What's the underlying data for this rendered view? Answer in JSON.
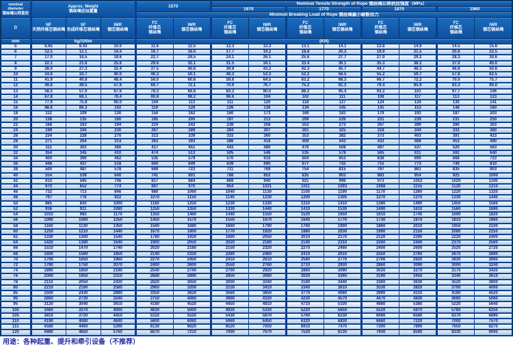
{
  "header": {
    "diameter_lines": [
      "nominal",
      "diameter",
      "钢丝绳公称直径"
    ],
    "diameter_symbol": "D",
    "diameter_unit": "mm",
    "weight_lines": [
      "Approx. Weight",
      "钢丝绳近似重量"
    ],
    "weight_unit": "kg/100m",
    "weight_columns": [
      {
        "code": "NF",
        "zh": "天然纤维芯钢丝绳"
      },
      {
        "code": "SF",
        "zh": "合成纤维芯钢丝绳"
      },
      {
        "code": "IWR",
        "zh": "钢芯钢丝绳"
      }
    ],
    "strength_title": "Nominal Tensile Strength of Rope 钢丝绳公称抗拉强度（MPa）",
    "strengths": [
      "1570",
      "1670",
      "1770",
      "1870",
      "1960"
    ],
    "breaking_title": "Minimun Breaking Load of Rope 钢丝绳最小破断拉力",
    "load_unit": "(KN)",
    "core_columns": [
      {
        "code": "FC",
        "lines": [
          "FC",
          "纤维芯",
          "钢丝绳"
        ]
      },
      {
        "code": "IWR",
        "lines": [
          "IWR",
          "钢芯钢丝绳"
        ]
      }
    ]
  },
  "footer": {
    "note": "用途：各种起重、提升和牵引设备（不推荐）"
  },
  "colors": {
    "frame": "#0b3f8f",
    "header_bg": "#115aab",
    "header_text": "#ffffff",
    "row_light": "#d9e8f8",
    "row_dark": "#b5d0eb",
    "data_text": "#1c2277",
    "note_text": "#2a2aa0"
  },
  "chart_data": {
    "type": "table",
    "title": "Wire rope specifications: approximate weight and minimum breaking load",
    "columns": [
      "D mm",
      "NF kg/100m",
      "SF kg/100m",
      "IWR kg/100m",
      "1570 FC KN",
      "1570 IWR KN",
      "1670 FC KN",
      "1670 IWR KN",
      "1770 FC KN",
      "1770 IWR KN",
      "1870 FC KN",
      "1870 IWR KN",
      "1960 FC KN",
      "1960 IWR KN"
    ],
    "rows": [
      [
        "5",
        "8.65",
        "8.43",
        "10.0",
        "11.6",
        "12.5",
        "12.3",
        "13.3",
        "13.1",
        "14.1",
        "13.8",
        "14.9",
        "14.5",
        "15.6"
      ],
      [
        "6",
        "12.5",
        "12.1",
        "14.4",
        "16.7",
        "18.0",
        "17.7",
        "19.2",
        "18.8",
        "20.3",
        "19.9",
        "21.5",
        "20.8",
        "22.5"
      ],
      [
        "7",
        "17.0",
        "16.5",
        "19.6",
        "22.7",
        "24.5",
        "24.1",
        "26.1",
        "25.6",
        "27.7",
        "27.0",
        "29.2",
        "28.3",
        "30.6"
      ],
      [
        "8",
        "22.1",
        "21.6",
        "25.6",
        "29.6",
        "32.1",
        "31.5",
        "34.1",
        "33.4",
        "36.1",
        "35.3",
        "38.2",
        "37.0",
        "40.0"
      ],
      [
        "9",
        "28.0",
        "27.3",
        "32.4",
        "37.5",
        "40.6",
        "39.9",
        "43.2",
        "42.3",
        "45.7",
        "44.7",
        "48.3",
        "46.8",
        "50.6"
      ],
      [
        "10",
        "34.6",
        "33.7",
        "40.0",
        "46.3",
        "50.1",
        "49.3",
        "53.3",
        "52.2",
        "56.5",
        "55.2",
        "59.7",
        "57.8",
        "62.5"
      ],
      [
        "11",
        "41.9",
        "40.8",
        "48.4",
        "56.0",
        "60.6",
        "59.6",
        "64.5",
        "63.2",
        "68.3",
        "66.7",
        "72.2",
        "70.0",
        "75.7"
      ],
      [
        "12",
        "49.8",
        "48.5",
        "57.6",
        "66.7",
        "72.1",
        "70.9",
        "76.7",
        "75.2",
        "81.3",
        "79.4",
        "85.9",
        "83.3",
        "90.0"
      ],
      [
        "13",
        "58.5",
        "57.0",
        "67.6",
        "78.3",
        "84.6",
        "83.3",
        "90.0",
        "88.2",
        "95.4",
        "93.2",
        "101",
        "97.7",
        "106"
      ],
      [
        "14",
        "67.8",
        "66.1",
        "78.4",
        "90.8",
        "98.2",
        "96.6",
        "104",
        "102",
        "111",
        "108",
        "117",
        "113",
        "123"
      ],
      [
        "15",
        "77.9",
        "75.8",
        "90.0",
        "104",
        "113",
        "111",
        "120",
        "118",
        "127",
        "124",
        "134",
        "130",
        "141"
      ],
      [
        "16",
        "88.6",
        "86.3",
        "102",
        "119",
        "128",
        "126",
        "136",
        "134",
        "145",
        "141",
        "153",
        "148",
        "160"
      ],
      [
        "18",
        "112",
        "109",
        "130",
        "150",
        "162",
        "160",
        "173",
        "169",
        "183",
        "179",
        "193",
        "187",
        "203"
      ],
      [
        "20",
        "138",
        "135",
        "160",
        "185",
        "200",
        "197",
        "213",
        "209",
        "226",
        "221",
        "239",
        "231",
        "250"
      ],
      [
        "22",
        "168",
        "163",
        "194",
        "224",
        "242",
        "238",
        "258",
        "253",
        "273",
        "267",
        "289",
        "280",
        "303"
      ],
      [
        "24",
        "199",
        "194",
        "230",
        "267",
        "289",
        "284",
        "307",
        "301",
        "325",
        "318",
        "344",
        "333",
        "360"
      ],
      [
        "26",
        "234",
        "228",
        "270",
        "313",
        "339",
        "333",
        "360",
        "353",
        "382",
        "373",
        "403",
        "391",
        "423"
      ],
      [
        "28",
        "271",
        "264",
        "314",
        "363",
        "393",
        "386",
        "418",
        "409",
        "443",
        "433",
        "468",
        "453",
        "490"
      ],
      [
        "30",
        "311",
        "303",
        "360",
        "417",
        "451",
        "443",
        "480",
        "470",
        "508",
        "497",
        "537",
        "520",
        "563"
      ],
      [
        "32",
        "354",
        "345",
        "410",
        "474",
        "513",
        "505",
        "546",
        "535",
        "578",
        "565",
        "611",
        "592",
        "640"
      ],
      [
        "34",
        "400",
        "390",
        "462",
        "535",
        "579",
        "570",
        "616",
        "604",
        "653",
        "638",
        "690",
        "668",
        "723"
      ],
      [
        "36",
        "448",
        "437",
        "518",
        "600",
        "649",
        "639",
        "690",
        "677",
        "732",
        "715",
        "773",
        "749",
        "810"
      ],
      [
        "38",
        "500",
        "487",
        "578",
        "669",
        "723",
        "711",
        "769",
        "754",
        "815",
        "797",
        "861",
        "835",
        "903"
      ],
      [
        "40",
        "554",
        "539",
        "640",
        "741",
        "801",
        "788",
        "852",
        "835",
        "903",
        "883",
        "954",
        "925",
        "1000"
      ],
      [
        "42",
        "610",
        "595",
        "706",
        "817",
        "884",
        "869",
        "940",
        "921",
        "996",
        "973",
        "1052",
        "1020",
        "1100"
      ],
      [
        "44",
        "670",
        "652",
        "774",
        "897",
        "970",
        "954",
        "1031",
        "1011",
        "1093",
        "1068",
        "1155",
        "1120",
        "1210"
      ],
      [
        "46",
        "732",
        "713",
        "846",
        "980",
        "1060",
        "1040",
        "1130",
        "1100",
        "1190",
        "1170",
        "1260",
        "1220",
        "1320"
      ],
      [
        "48",
        "797",
        "776",
        "922",
        "1070",
        "1150",
        "1140",
        "1230",
        "1200",
        "1300",
        "1270",
        "1370",
        "1330",
        "1440"
      ],
      [
        "50",
        "865",
        "843",
        "1000",
        "1160",
        "1250",
        "1230",
        "1330",
        "1310",
        "1410",
        "1380",
        "1490",
        "1450",
        "1560"
      ],
      [
        "52",
        "936",
        "911",
        "1080",
        "1250",
        "1350",
        "1330",
        "1440",
        "1410",
        "1530",
        "1490",
        "1610",
        "1560",
        "1690"
      ],
      [
        "54",
        "1010",
        "983",
        "1170",
        "1350",
        "1460",
        "1440",
        "1550",
        "1520",
        "1650",
        "1610",
        "1740",
        "1690",
        "1820"
      ],
      [
        "56",
        "1090",
        "1060",
        "1250",
        "1450",
        "1570",
        "1550",
        "1670",
        "1640",
        "1770",
        "1730",
        "1870",
        "1810",
        "1960"
      ],
      [
        "58",
        "1160",
        "1130",
        "1350",
        "1560",
        "1680",
        "1660",
        "1790",
        "1760",
        "1900",
        "1860",
        "2010",
        "1950",
        "2100"
      ],
      [
        "60",
        "1250",
        "1210",
        "1440",
        "1670",
        "1800",
        "1770",
        "1920",
        "1880",
        "2030",
        "1990",
        "2150",
        "2080",
        "2250"
      ],
      [
        "62",
        "1330",
        "1300",
        "1540",
        "1780",
        "1920",
        "1890",
        "2050",
        "2010",
        "2170",
        "2120",
        "2290",
        "2220",
        "2400"
      ],
      [
        "64",
        "1420",
        "1380",
        "1640",
        "1900",
        "2050",
        "2020",
        "2180",
        "2140",
        "2310",
        "2260",
        "2440",
        "2370",
        "2560"
      ],
      [
        "66",
        "1510",
        "1470",
        "1740",
        "2020",
        "2180",
        "2150",
        "2320",
        "2270",
        "2460",
        "2400",
        "2600",
        "2520",
        "2720"
      ],
      [
        "68",
        "1600",
        "1560",
        "1850",
        "2140",
        "2320",
        "2280",
        "2460",
        "2410",
        "2610",
        "2550",
        "2760",
        "2670",
        "2890"
      ],
      [
        "70",
        "1700",
        "1650",
        "1960",
        "2270",
        "2450",
        "2410",
        "2610",
        "2560",
        "2770",
        "2700",
        "2920",
        "2830",
        "3060"
      ],
      [
        "72",
        "1790",
        "1750",
        "2070",
        "2400",
        "2600",
        "2550",
        "2760",
        "2710",
        "2930",
        "2860",
        "3090",
        "3000",
        "3240"
      ],
      [
        "74",
        "1890",
        "1850",
        "2190",
        "2540",
        "2740",
        "2700",
        "2920",
        "2860",
        "3090",
        "3020",
        "3270",
        "3170",
        "3420"
      ],
      [
        "76",
        "2000",
        "1950",
        "2310",
        "2680",
        "2890",
        "2850",
        "3080",
        "3020",
        "3260",
        "3190",
        "3450",
        "3340",
        "3610"
      ],
      [
        "78",
        "2110",
        "2050",
        "2430",
        "2820",
        "3050",
        "3000",
        "3240",
        "3180",
        "3440",
        "3360",
        "3630",
        "3520",
        "3800"
      ],
      [
        "80",
        "2210",
        "2160",
        "2560",
        "2960",
        "3200",
        "3150",
        "3410",
        "3340",
        "3610",
        "3530",
        "3820",
        "3700",
        "4000"
      ],
      [
        "85",
        "2500",
        "2430",
        "2890",
        "3350",
        "3620",
        "3560",
        "3850",
        "3770",
        "4080",
        "3990",
        "4310",
        "4180",
        "4520"
      ],
      [
        "90",
        "2800",
        "2730",
        "3240",
        "3750",
        "4060",
        "3990",
        "4320",
        "4230",
        "4570",
        "4470",
        "4830",
        "4680",
        "5060"
      ],
      [
        "95",
        "3120",
        "3040",
        "3610",
        "4180",
        "4520",
        "4450",
        "4810",
        "4710",
        "5100",
        "4980",
        "5380",
        "5220",
        "5640"
      ],
      [
        "100",
        "3460",
        "3370",
        "4000",
        "4630",
        "5000",
        "4930",
        "5330",
        "5220",
        "5650",
        "5520",
        "5970",
        "5780",
        "6250"
      ],
      [
        "105",
        "3810",
        "3720",
        "4410",
        "5110",
        "5520",
        "5430",
        "5870",
        "5760",
        "6230",
        "6080",
        "6580",
        "6370",
        "6890"
      ],
      [
        "110",
        "4190",
        "4080",
        "4840",
        "5600",
        "6060",
        "5960",
        "6450",
        "6320",
        "6830",
        "6680",
        "7220",
        "7000",
        "7570"
      ],
      [
        "115",
        "4580",
        "4460",
        "5290",
        "6130",
        "6620",
        "6520",
        "7050",
        "6910",
        "7470",
        "7300",
        "7890",
        "7650",
        "8270"
      ],
      [
        "120",
        "4980",
        "4850",
        "5760",
        "6670",
        "7210",
        "7090",
        "7670",
        "7520",
        "8130",
        "7940",
        "8590",
        "8330",
        "9000"
      ]
    ]
  }
}
